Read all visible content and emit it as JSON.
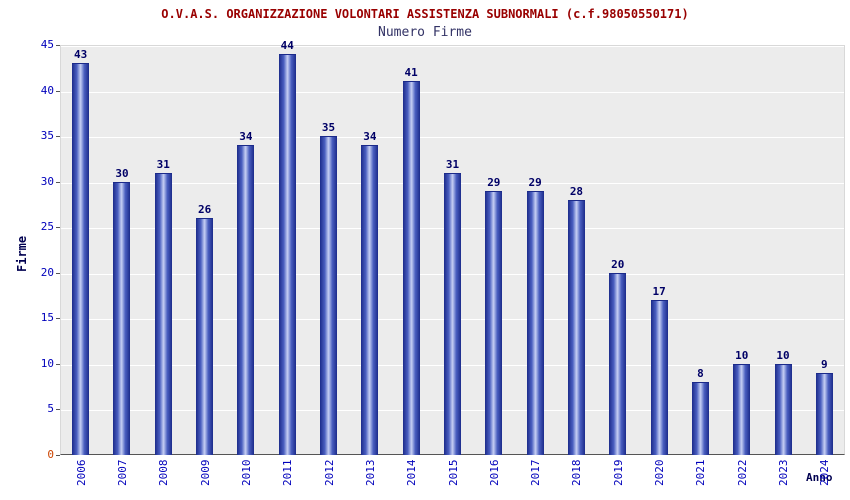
{
  "chart_data": {
    "type": "bar",
    "title": "O.V.A.S. ORGANIZZAZIONE VOLONTARI ASSISTENZA SUBNORMALI (c.f.98050550171)",
    "subtitle": "Numero Firme",
    "xlabel": "Anno",
    "ylabel": "Firme",
    "categories": [
      "2006",
      "2007",
      "2008",
      "2009",
      "2010",
      "2011",
      "2012",
      "2013",
      "2014",
      "2015",
      "2016",
      "2017",
      "2018",
      "2019",
      "2020",
      "2021",
      "2022",
      "2023",
      "2024"
    ],
    "values": [
      43,
      30,
      31,
      26,
      34,
      44,
      35,
      34,
      41,
      31,
      29,
      29,
      28,
      20,
      17,
      8,
      10,
      10,
      9
    ],
    "ylim": [
      0,
      45
    ],
    "ytick_step": 5,
    "grid": "horizontal-major",
    "legend": "none",
    "colors": {
      "title": "#990000",
      "subtitle": "#333366",
      "bar_dark": "#1b2a8a",
      "bar_mid": "#4a5fc0",
      "bar_light": "#c7d0f4",
      "value_label": "#000066",
      "tick_label": "#0000bb",
      "zero_tick": "#cc4400",
      "axis_title": "#000050",
      "plot_bg": "#ececec",
      "grid_line": "#ffffff"
    }
  }
}
